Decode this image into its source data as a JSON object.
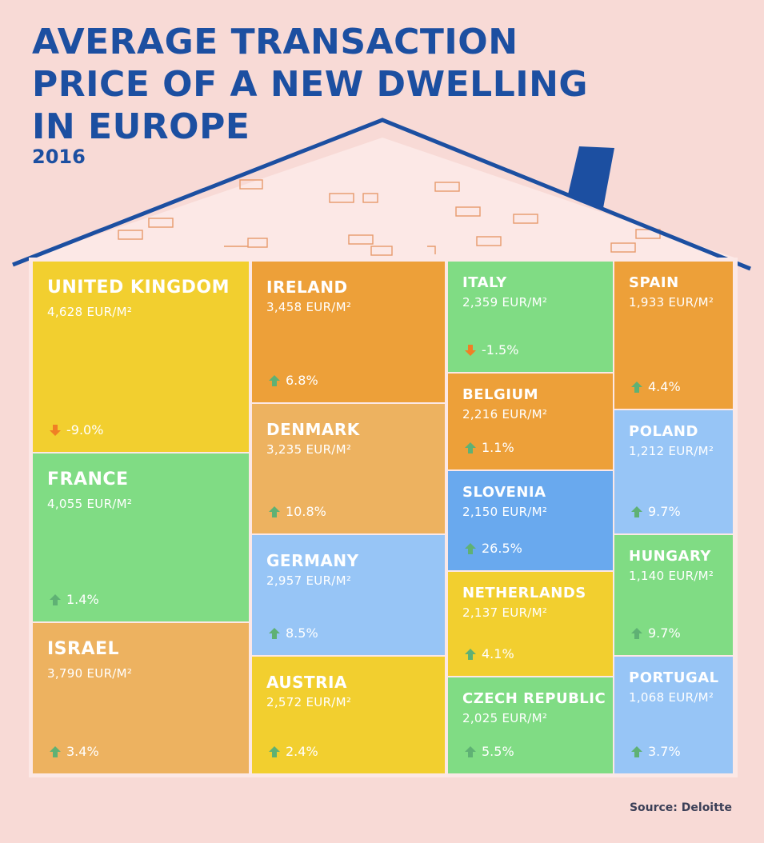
{
  "title": "AVERAGE TRANSACTION\nPRICE OF A NEW DWELLING\nIN EUROPE",
  "subtitle": "2016",
  "source": "Source: Deloitte",
  "colors": {
    "background": "#f8dad6",
    "title": "#1c4fa1",
    "up_arrow": "#5fb174",
    "down_arrow": "#f07f25"
  },
  "chart_data": {
    "type": "treemap",
    "title": "AVERAGE TRANSACTION PRICE OF A NEW DWELLING IN EUROPE",
    "subtitle": "2016",
    "unit": "EUR/M²",
    "items": [
      {
        "country": "UNITED KINGDOM",
        "price": 4628,
        "price_label": "4,628 EUR/M²",
        "change": -9.0,
        "change_label": "-9.0%",
        "color": "#f2cf2f"
      },
      {
        "country": "FRANCE",
        "price": 4055,
        "price_label": "4,055 EUR/M²",
        "change": 1.4,
        "change_label": "1.4%",
        "color": "#80dc84"
      },
      {
        "country": "ISRAEL",
        "price": 3790,
        "price_label": "3,790 EUR/M²",
        "change": 3.4,
        "change_label": "3.4%",
        "color": "#edb260"
      },
      {
        "country": "IRELAND",
        "price": 3458,
        "price_label": "3,458 EUR/M²",
        "change": 6.8,
        "change_label": "6.8%",
        "color": "#eda039"
      },
      {
        "country": "DENMARK",
        "price": 3235,
        "price_label": "3,235 EUR/M²",
        "change": 10.8,
        "change_label": "10.8%",
        "color": "#edb260"
      },
      {
        "country": "GERMANY",
        "price": 2957,
        "price_label": "2,957 EUR/M²",
        "change": 8.5,
        "change_label": "8.5%",
        "color": "#97c5f6"
      },
      {
        "country": "AUSTRIA",
        "price": 2572,
        "price_label": "2,572 EUR/M²",
        "change": 2.4,
        "change_label": "2.4%",
        "color": "#f2cf2f"
      },
      {
        "country": "ITALY",
        "price": 2359,
        "price_label": "2,359 EUR/M²",
        "change": -1.5,
        "change_label": "-1.5%",
        "color": "#80dc84"
      },
      {
        "country": "BELGIUM",
        "price": 2216,
        "price_label": "2,216 EUR/M²",
        "change": 1.1,
        "change_label": "1.1%",
        "color": "#eda039"
      },
      {
        "country": "SLOVENIA",
        "price": 2150,
        "price_label": "2,150 EUR/M²",
        "change": 26.5,
        "change_label": "26.5%",
        "color": "#69a9ee"
      },
      {
        "country": "NETHERLANDS",
        "price": 2137,
        "price_label": "2,137 EUR/M²",
        "change": 4.1,
        "change_label": "4.1%",
        "color": "#f2cf2f"
      },
      {
        "country": "CZECH REPUBLIC",
        "price": 2025,
        "price_label": "2,025 EUR/M²",
        "change": 5.5,
        "change_label": "5.5%",
        "color": "#80dc84"
      },
      {
        "country": "SPAIN",
        "price": 1933,
        "price_label": "1,933 EUR/M²",
        "change": 4.4,
        "change_label": "4.4%",
        "color": "#eda039"
      },
      {
        "country": "POLAND",
        "price": 1212,
        "price_label": "1,212 EUR/M²",
        "change": 9.7,
        "change_label": "9.7%",
        "color": "#97c5f6"
      },
      {
        "country": "HUNGARY",
        "price": 1140,
        "price_label": "1,140 EUR/M²",
        "change": 9.7,
        "change_label": "9.7%",
        "color": "#80dc84"
      },
      {
        "country": "PORTUGAL",
        "price": 1068,
        "price_label": "1,068 EUR/M²",
        "change": 3.7,
        "change_label": "3.7%",
        "color": "#97c5f6"
      }
    ]
  }
}
